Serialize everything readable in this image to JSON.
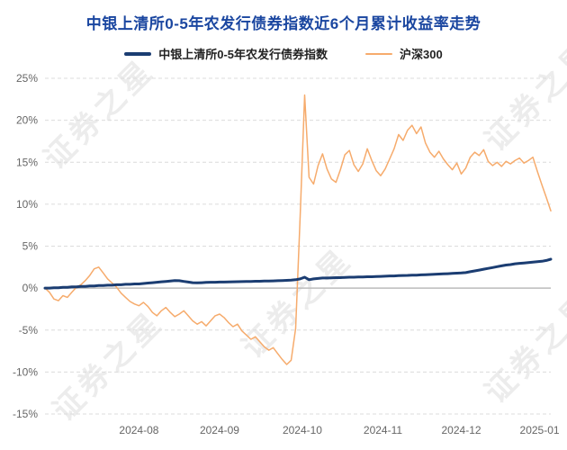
{
  "title": "中银上清所0-5年农发行债券指数近6个月累计收益率走势",
  "watermark": {
    "text": "证券之星"
  },
  "legend": [
    {
      "label": "中银上清所0-5年农发行债券指数"
    },
    {
      "label": "沪深300"
    }
  ],
  "colors": {
    "title": "#1a46a0",
    "bond_line": "#1b3d72",
    "csi300_line": "#f6ab6c",
    "grid": "#dcdcdc",
    "zero_line": "#bbbbbb",
    "tick_text": "#666666"
  },
  "chart_data": {
    "type": "line",
    "title": "中银上清所0-5年农发行债券指数近6个月累计收益率走势",
    "ylabel": "",
    "xlabel": "",
    "ylim": [
      -15,
      25
    ],
    "y_ticks": [
      25,
      20,
      15,
      10,
      5,
      0,
      -5,
      -10,
      -15
    ],
    "y_tick_suffix": "%",
    "x_tick_labels": [
      "2024-08",
      "2024-09",
      "2024-10",
      "2024-11",
      "2024-12",
      "2025-01"
    ],
    "x_tick_indices": [
      21,
      39,
      57.5,
      75.5,
      93,
      110.5
    ],
    "n_points": 114,
    "grid": "dashed-horizontal",
    "legend_position": "top",
    "series": [
      {
        "name": "中银上清所0-5年农发行债券指数",
        "color": "#1b3d72",
        "width": 3,
        "values": [
          0.0,
          0.0,
          0.05,
          0.05,
          0.1,
          0.1,
          0.15,
          0.15,
          0.2,
          0.2,
          0.25,
          0.25,
          0.3,
          0.3,
          0.35,
          0.35,
          0.4,
          0.4,
          0.45,
          0.45,
          0.5,
          0.5,
          0.55,
          0.6,
          0.65,
          0.7,
          0.75,
          0.8,
          0.85,
          0.9,
          0.88,
          0.8,
          0.72,
          0.65,
          0.62,
          0.65,
          0.68,
          0.7,
          0.7,
          0.72,
          0.72,
          0.74,
          0.75,
          0.76,
          0.78,
          0.8,
          0.8,
          0.82,
          0.82,
          0.84,
          0.85,
          0.86,
          0.88,
          0.9,
          0.92,
          0.95,
          1.0,
          1.1,
          1.3,
          1.0,
          1.1,
          1.15,
          1.2,
          1.2,
          1.22,
          1.25,
          1.25,
          1.28,
          1.3,
          1.3,
          1.32,
          1.32,
          1.35,
          1.35,
          1.38,
          1.4,
          1.42,
          1.45,
          1.45,
          1.48,
          1.5,
          1.52,
          1.55,
          1.55,
          1.58,
          1.6,
          1.62,
          1.65,
          1.68,
          1.7,
          1.72,
          1.75,
          1.78,
          1.8,
          1.85,
          1.95,
          2.05,
          2.15,
          2.25,
          2.35,
          2.45,
          2.55,
          2.65,
          2.75,
          2.8,
          2.9,
          2.95,
          3.0,
          3.05,
          3.1,
          3.15,
          3.2,
          3.3,
          3.45
        ]
      },
      {
        "name": "沪深300",
        "color": "#f6ab6c",
        "width": 1.5,
        "values": [
          0.0,
          -0.5,
          -1.3,
          -1.5,
          -0.9,
          -1.1,
          -0.5,
          0.1,
          0.4,
          0.9,
          1.5,
          2.3,
          2.5,
          1.8,
          1.1,
          0.6,
          0.1,
          -0.6,
          -1.1,
          -1.6,
          -1.9,
          -2.1,
          -1.7,
          -2.2,
          -2.9,
          -3.3,
          -2.7,
          -2.3,
          -2.9,
          -3.4,
          -3.1,
          -2.7,
          -3.3,
          -3.9,
          -4.3,
          -4.0,
          -4.5,
          -3.9,
          -3.3,
          -3.1,
          -3.5,
          -4.1,
          -4.6,
          -4.3,
          -5.1,
          -5.6,
          -6.1,
          -5.8,
          -6.4,
          -7.0,
          -7.4,
          -7.1,
          -7.8,
          -8.5,
          -9.1,
          -8.6,
          -4.8,
          8.5,
          23.0,
          13.2,
          12.4,
          14.6,
          16.0,
          14.2,
          13.0,
          12.6,
          14.1,
          15.9,
          16.4,
          14.7,
          13.9,
          14.8,
          16.6,
          15.2,
          14.0,
          13.4,
          14.2,
          15.4,
          16.6,
          18.3,
          17.6,
          18.8,
          19.4,
          18.4,
          19.2,
          17.3,
          16.2,
          15.6,
          16.3,
          15.4,
          14.7,
          14.1,
          14.9,
          13.6,
          14.3,
          15.6,
          16.2,
          15.8,
          16.5,
          15.1,
          14.6,
          15.0,
          14.5,
          15.1,
          14.8,
          15.2,
          15.5,
          14.9,
          15.2,
          15.6,
          13.9,
          12.3,
          10.8,
          9.2
        ]
      }
    ]
  }
}
